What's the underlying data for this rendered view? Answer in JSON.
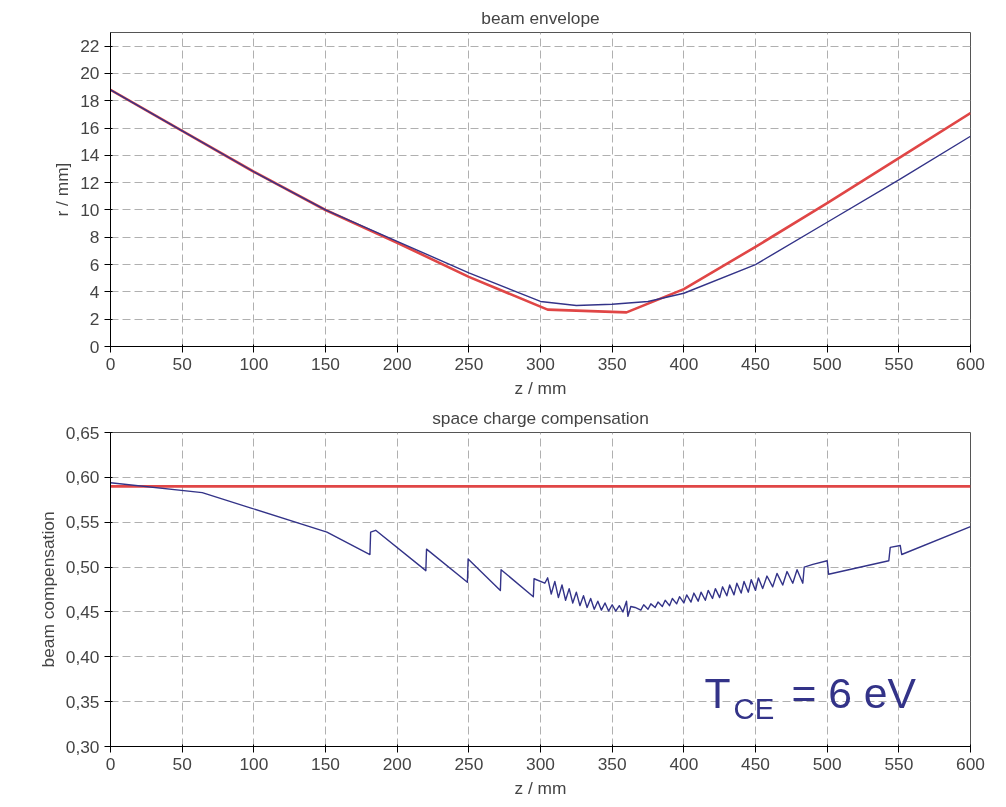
{
  "chart_data": [
    {
      "type": "line",
      "title": "beam envelope",
      "xlabel": "z / mm",
      "ylabel": "r / mm]",
      "xlim": [
        0,
        600
      ],
      "xticks": [
        0,
        50,
        100,
        150,
        200,
        250,
        300,
        350,
        400,
        450,
        500,
        550,
        600
      ],
      "ylim": [
        0,
        23
      ],
      "yticks": [
        0,
        2,
        4,
        6,
        8,
        10,
        12,
        14,
        16,
        18,
        20,
        22
      ],
      "grid": true,
      "marker": "none",
      "line_style": "solid",
      "series": [
        {
          "color": "#e04646",
          "x": [
            0,
            50,
            100,
            150,
            200,
            250,
            305,
            360,
            400,
            450,
            500,
            550,
            600
          ],
          "values": [
            18.8,
            15.8,
            12.8,
            10.0,
            7.6,
            5.1,
            2.7,
            2.5,
            4.2,
            7.3,
            10.5,
            13.8,
            17.1
          ]
        },
        {
          "color": "#333388",
          "x": [
            0,
            50,
            100,
            150,
            200,
            250,
            300,
            325,
            350,
            375,
            400,
            450,
            500,
            550,
            600
          ],
          "values": [
            18.8,
            15.8,
            12.8,
            10.0,
            7.7,
            5.4,
            3.3,
            3.0,
            3.1,
            3.3,
            3.9,
            6.0,
            9.1,
            12.2,
            15.4
          ]
        }
      ]
    },
    {
      "type": "line",
      "title": "space charge compensation",
      "xlabel": "z / mm",
      "ylabel": "beam compensation",
      "xlim": [
        0,
        600
      ],
      "xticks": [
        0,
        50,
        100,
        150,
        200,
        250,
        300,
        350,
        400,
        450,
        500,
        550,
        600
      ],
      "ylim": [
        0.3,
        0.65
      ],
      "yticks": [
        {
          "value": 0.3,
          "label": "0,30"
        },
        {
          "value": 0.35,
          "label": "0,35"
        },
        {
          "value": 0.4,
          "label": "0,40"
        },
        {
          "value": 0.45,
          "label": "0,45"
        },
        {
          "value": 0.5,
          "label": "0,50"
        },
        {
          "value": 0.55,
          "label": "0,55"
        },
        {
          "value": 0.6,
          "label": "0,60"
        },
        {
          "value": 0.65,
          "label": "0,65"
        }
      ],
      "grid": true,
      "marker": "none",
      "line_style": "solid",
      "annotations": [
        "T$_{CE}$ = 6 eV"
      ],
      "series": [
        {
          "color": "#e04646",
          "x": [
            0,
            600
          ],
          "values": [
            0.59,
            0.59
          ]
        },
        {
          "color": "#333388",
          "x": [
            0,
            64,
            151,
            181,
            181.5,
            185,
            220,
            220.5,
            249,
            249.5,
            272,
            272.5,
            295,
            295.5,
            303,
            305,
            307.5,
            310,
            312.5,
            315,
            317.5,
            320,
            322.5,
            325,
            327.5,
            330,
            332.5,
            335,
            337.5,
            340,
            342.5,
            345,
            347.5,
            350,
            352.5,
            355,
            357.5,
            360,
            361,
            363,
            366,
            370,
            372,
            375,
            377,
            380,
            382,
            385,
            387,
            390,
            392,
            395,
            397,
            400,
            402,
            405,
            407,
            410,
            412,
            415,
            417,
            420,
            422,
            425,
            427,
            430,
            432,
            435,
            437,
            440,
            442,
            445,
            447,
            450,
            452,
            455,
            458,
            462,
            465,
            469,
            472,
            476,
            479,
            483,
            484,
            490,
            500,
            501,
            543,
            544,
            551,
            552,
            600
          ],
          "values": [
            0.594,
            0.583,
            0.539,
            0.514,
            0.539,
            0.541,
            0.496,
            0.52,
            0.483,
            0.509,
            0.474,
            0.497,
            0.467,
            0.487,
            0.482,
            0.488,
            0.47,
            0.484,
            0.466,
            0.48,
            0.463,
            0.476,
            0.46,
            0.472,
            0.457,
            0.468,
            0.455,
            0.465,
            0.453,
            0.462,
            0.452,
            0.46,
            0.451,
            0.458,
            0.451,
            0.457,
            0.45,
            0.462,
            0.445,
            0.456,
            0.455,
            0.452,
            0.458,
            0.453,
            0.459,
            0.455,
            0.461,
            0.456,
            0.463,
            0.457,
            0.465,
            0.459,
            0.467,
            0.46,
            0.469,
            0.461,
            0.471,
            0.462,
            0.472,
            0.463,
            0.474,
            0.465,
            0.476,
            0.466,
            0.478,
            0.468,
            0.48,
            0.469,
            0.482,
            0.471,
            0.484,
            0.472,
            0.486,
            0.474,
            0.488,
            0.476,
            0.49,
            0.478,
            0.493,
            0.48,
            0.495,
            0.482,
            0.497,
            0.482,
            0.5,
            0.503,
            0.507,
            0.492,
            0.507,
            0.522,
            0.524,
            0.514,
            0.545
          ]
        }
      ]
    }
  ]
}
